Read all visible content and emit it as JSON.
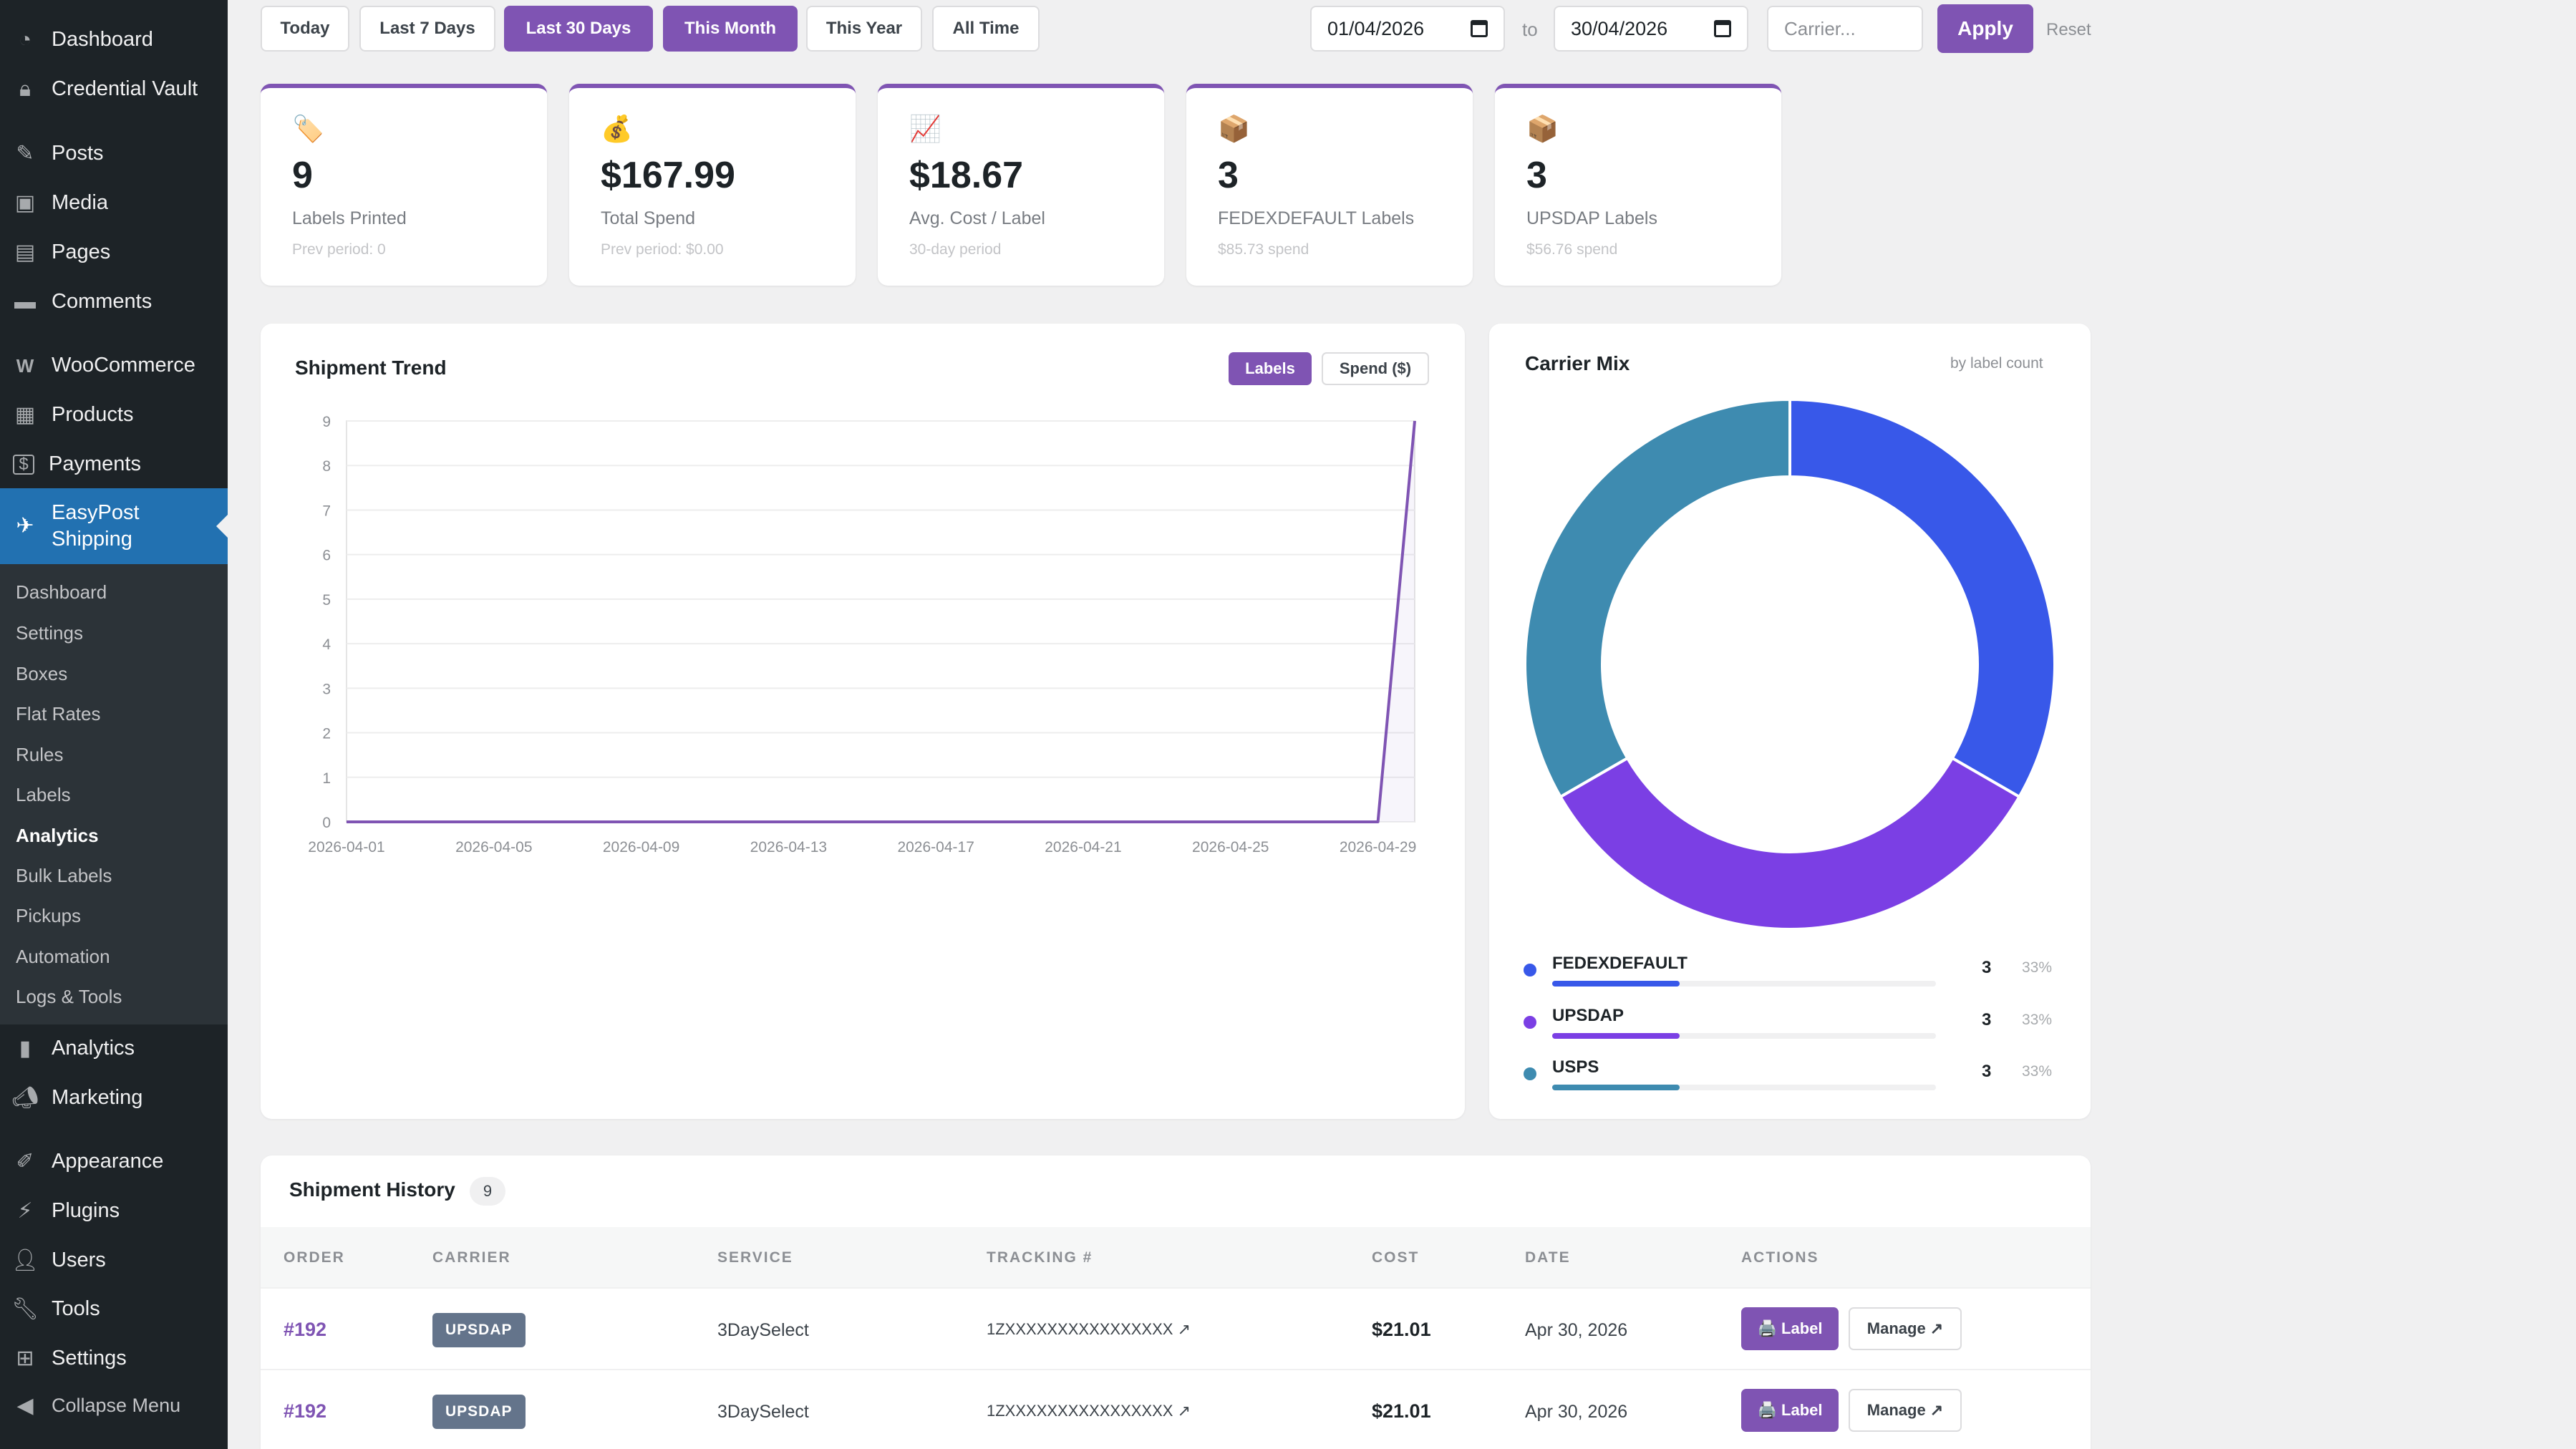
{
  "sidebar": {
    "menu": [
      {
        "label": "Dashboard",
        "icon": "dashboard-icon"
      },
      {
        "label": "Credential Vault",
        "icon": "lock-icon"
      },
      {
        "label": "Posts",
        "icon": "pin-icon"
      },
      {
        "label": "Media",
        "icon": "media-icon"
      },
      {
        "label": "Pages",
        "icon": "page-icon"
      },
      {
        "label": "Comments",
        "icon": "comment-icon"
      },
      {
        "label": "WooCommerce",
        "icon": "woo-icon"
      },
      {
        "label": "Products",
        "icon": "archive-icon"
      },
      {
        "label": "Payments",
        "icon": "dollar-icon"
      },
      {
        "label": "EasyPost\nShipping",
        "icon": "plane-icon"
      },
      {
        "label": "Analytics",
        "icon": "bar-chart-icon"
      },
      {
        "label": "Marketing",
        "icon": "megaphone-icon"
      },
      {
        "label": "Appearance",
        "icon": "brush-icon"
      },
      {
        "label": "Plugins",
        "icon": "plug-icon"
      },
      {
        "label": "Users",
        "icon": "user-icon"
      },
      {
        "label": "Tools",
        "icon": "wrench-icon"
      },
      {
        "label": "Settings",
        "icon": "settings-icon"
      },
      {
        "label": "Collapse Menu",
        "icon": "collapse-icon"
      }
    ],
    "submenu": [
      "Dashboard",
      "Settings",
      "Boxes",
      "Flat Rates",
      "Rules",
      "Labels",
      "Analytics",
      "Bulk Labels",
      "Pickups",
      "Automation",
      "Logs & Tools"
    ],
    "current_submenu": "Analytics"
  },
  "filters": {
    "presets": [
      "Today",
      "Last 7 Days",
      "Last 30 Days",
      "This Month",
      "This Year",
      "All Time"
    ],
    "active_presets": [
      "Last 30 Days",
      "This Month"
    ],
    "date_from": "01/04/2026",
    "to_label": "to",
    "date_to": "30/04/2026",
    "carrier_placeholder": "Carrier...",
    "apply_label": "Apply",
    "reset_label": "Reset"
  },
  "kpis": [
    {
      "icon": "🏷️",
      "value": "9",
      "label": "Labels Printed",
      "sub": "Prev period: 0"
    },
    {
      "icon": "💰",
      "value": "$167.99",
      "label": "Total Spend",
      "sub": "Prev period: $0.00"
    },
    {
      "icon": "📈",
      "value": "$18.67",
      "label": "Avg. Cost / Label",
      "sub": "30-day period"
    },
    {
      "icon": "📦",
      "value": "3",
      "label": "FEDEXDEFAULT Labels",
      "sub": "$85.73 spend"
    },
    {
      "icon": "📦",
      "value": "3",
      "label": "UPSDAP Labels",
      "sub": "$56.76 spend"
    }
  ],
  "trend": {
    "title": "Shipment Trend",
    "toggle_labels": "Labels",
    "toggle_spend": "Spend ($)"
  },
  "mix": {
    "title": "Carrier Mix",
    "subtitle": "by label count"
  },
  "chart_data": [
    {
      "type": "line",
      "title": "Shipment Trend",
      "x": [
        "2026-04-01",
        "2026-04-02",
        "2026-04-03",
        "2026-04-04",
        "2026-04-05",
        "2026-04-06",
        "2026-04-07",
        "2026-04-08",
        "2026-04-09",
        "2026-04-10",
        "2026-04-11",
        "2026-04-12",
        "2026-04-13",
        "2026-04-14",
        "2026-04-15",
        "2026-04-16",
        "2026-04-17",
        "2026-04-18",
        "2026-04-19",
        "2026-04-20",
        "2026-04-21",
        "2026-04-22",
        "2026-04-23",
        "2026-04-24",
        "2026-04-25",
        "2026-04-26",
        "2026-04-27",
        "2026-04-28",
        "2026-04-29",
        "2026-04-30"
      ],
      "x_ticks": [
        "2026-04-01",
        "2026-04-05",
        "2026-04-09",
        "2026-04-13",
        "2026-04-17",
        "2026-04-21",
        "2026-04-25",
        "2026-04-29"
      ],
      "series": [
        {
          "values": [
            0,
            0,
            0,
            0,
            0,
            0,
            0,
            0,
            0,
            0,
            0,
            0,
            0,
            0,
            0,
            0,
            0,
            0,
            0,
            0,
            0,
            0,
            0,
            0,
            0,
            0,
            0,
            0,
            0,
            9
          ],
          "color": "#7f54b3"
        }
      ],
      "ylim": [
        0,
        9
      ],
      "y_ticks": [
        0,
        1,
        2,
        3,
        4,
        5,
        6,
        7,
        8,
        9
      ],
      "grid": true
    },
    {
      "type": "pie",
      "title": "Carrier Mix",
      "categories": [
        "FEDEXDEFAULT",
        "UPSDAP",
        "USPS"
      ],
      "values": [
        3,
        3,
        3
      ],
      "percents": [
        "33%",
        "33%",
        "33%"
      ],
      "colors": [
        "#3858e9",
        "#7b3fe4",
        "#3e8bb0"
      ],
      "legend": "bottom"
    }
  ],
  "history": {
    "title": "Shipment History",
    "count": "9",
    "columns": [
      "ORDER",
      "CARRIER",
      "SERVICE",
      "TRACKING #",
      "COST",
      "DATE",
      "ACTIONS"
    ],
    "rows": [
      {
        "order": "#192",
        "carrier": "UPSDAP",
        "service": "3DaySelect",
        "tracking": "1ZXXXXXXXXXXXXXXXX ↗",
        "cost": "$21.01",
        "date": "Apr 30, 2026",
        "label_btn": "🖨️ Label",
        "manage_btn": "Manage ↗"
      },
      {
        "order": "#192",
        "carrier": "UPSDAP",
        "service": "3DaySelect",
        "tracking": "1ZXXXXXXXXXXXXXXXX ↗",
        "cost": "$21.01",
        "date": "Apr 30, 2026",
        "label_btn": "🖨️ Label",
        "manage_btn": "Manage ↗"
      }
    ]
  }
}
